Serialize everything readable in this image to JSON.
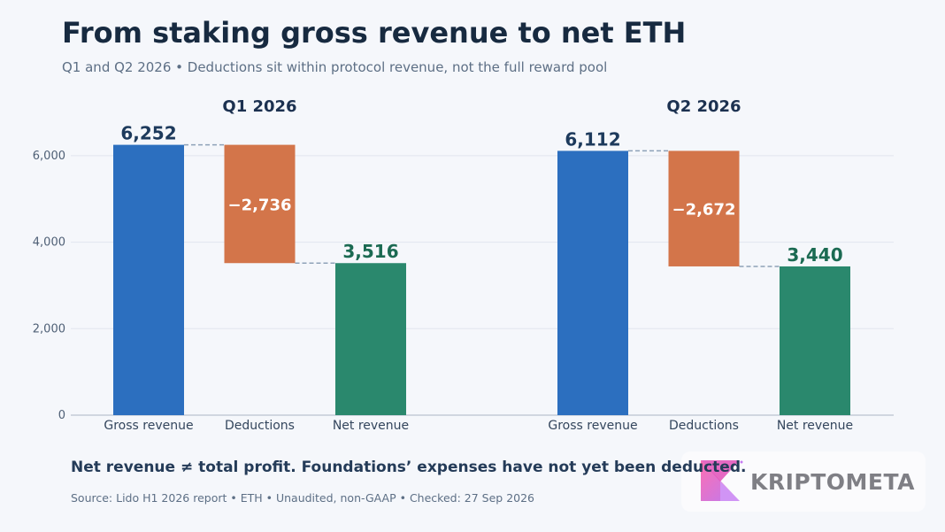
{
  "header": {
    "title": "From staking gross revenue to net ETH",
    "subtitle": "Q1 and Q2 2026 • Deductions sit within protocol revenue, not the full reward pool"
  },
  "chart_data": {
    "type": "waterfall",
    "y_range": [
      0,
      7000
    ],
    "y_ticks": [
      0,
      2000,
      4000,
      6000
    ],
    "y_tick_labels": [
      "0",
      "2,000",
      "4,000",
      "6,000"
    ],
    "grid": true,
    "categories": [
      "Gross revenue",
      "Deductions",
      "Net revenue"
    ],
    "panels": [
      {
        "title": "Q1 2026",
        "gross": 6252,
        "deductions": -2736,
        "net": 3516,
        "labels": [
          "6,252",
          "−2,736",
          "3,516"
        ]
      },
      {
        "title": "Q2 2026",
        "gross": 6112,
        "deductions": -2672,
        "net": 3440,
        "labels": [
          "6,112",
          "−2,672",
          "3,440"
        ]
      }
    ],
    "colors": {
      "gross": "#2c6fbf",
      "deductions": "#d3754a",
      "net": "#2a886d",
      "gross_label": "#1d3a5c",
      "net_label": "#1b6a52",
      "connector": "#8ea2b8",
      "grid": "#e1e6ee",
      "axis": "#aab6c6"
    }
  },
  "footer": {
    "note": "Net revenue ≠ total profit. Foundations’ expenses have not yet been deducted.",
    "source": "Source: Lido H1 2026 report • ETH • Unaudited, non-GAAP • Checked: 27 Sep 2026"
  },
  "logo": {
    "text": "KRIPTOMETA"
  }
}
